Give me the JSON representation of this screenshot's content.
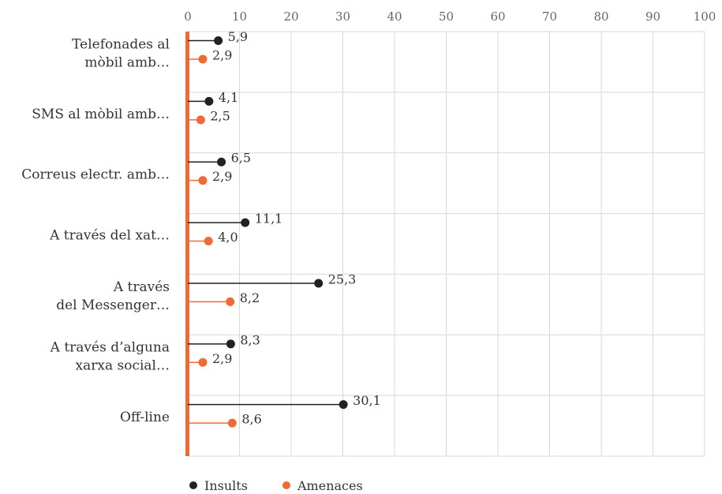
{
  "chart_data": {
    "type": "lollipop",
    "orientation": "horizontal",
    "xlim": [
      0,
      100
    ],
    "x_ticks": [
      "0",
      "10",
      "20",
      "30",
      "40",
      "50",
      "60",
      "70",
      "80",
      "90",
      "100"
    ],
    "grid": true,
    "legend_position": "bottom-left",
    "categories": [
      [
        "Telefonades al",
        "mòbil amb…"
      ],
      [
        "SMS al mòbil amb…"
      ],
      [
        "Correus electr. amb…"
      ],
      [
        "A través del xat…"
      ],
      [
        "A través",
        "del Messenger…"
      ],
      [
        "A través d’alguna",
        "xarxa social…"
      ],
      [
        "Off-line"
      ]
    ],
    "series": [
      {
        "name": "Insults",
        "color": "#222222",
        "values": [
          5.9,
          4.1,
          6.5,
          11.1,
          25.3,
          8.3,
          30.1
        ],
        "labels": [
          "5,9",
          "4,1",
          "6,5",
          "11,1",
          "25,3",
          "8,3",
          "30,1"
        ]
      },
      {
        "name": "Amenaces",
        "color": "#EE6B36",
        "values": [
          2.9,
          2.5,
          2.9,
          4.0,
          8.2,
          2.9,
          8.6
        ],
        "labels": [
          "2,9",
          "2,5",
          "2,9",
          "4,0",
          "8,2",
          "2,9",
          "8,6"
        ]
      }
    ],
    "axis_color": "#EE6B36"
  }
}
